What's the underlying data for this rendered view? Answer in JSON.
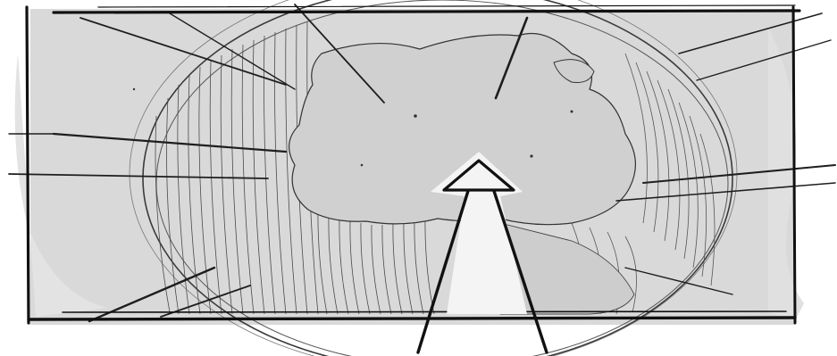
{
  "panel": {
    "subject": "globe-sketch",
    "tone": "pencil-storyboard",
    "colors": {
      "paper": "#ffffff",
      "wash": "#d6d6d6",
      "wash_light": "#e6e6e6",
      "pencil": "#2b2b2b",
      "pencil_light": "#7a7a7a",
      "frame": "#111111",
      "highlight": "#f4f4f4"
    }
  }
}
